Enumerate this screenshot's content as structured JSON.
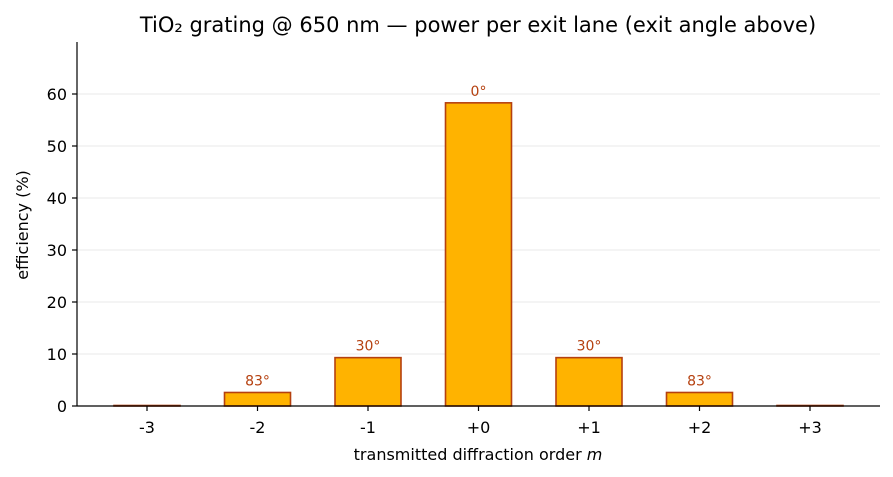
{
  "chart_data": {
    "type": "bar",
    "title": "TiO₂ grating @ 650 nm — power per exit lane (exit angle above)",
    "xlabel": "transmitted diffraction order",
    "xlabel_var": "m",
    "ylabel": "efficiency (%)",
    "categories": [
      "-3",
      "-2",
      "-1",
      "+0",
      "+1",
      "+2",
      "+3"
    ],
    "values": [
      0.1,
      2.6,
      9.3,
      58.3,
      9.3,
      2.6,
      0.1
    ],
    "annotations": [
      "",
      "83°",
      "30°",
      "0°",
      "30°",
      "83°",
      ""
    ],
    "ylim": [
      0,
      70
    ],
    "yticks": [
      0,
      10,
      20,
      30,
      40,
      50,
      60
    ],
    "grid": "horizontal",
    "legend": "none"
  },
  "colors": {
    "bar_fill": "#FFB300",
    "bar_edge": "#B5400F",
    "annotation": "#B5400F",
    "grid": "#e8e8e8",
    "axis": "#000000"
  }
}
